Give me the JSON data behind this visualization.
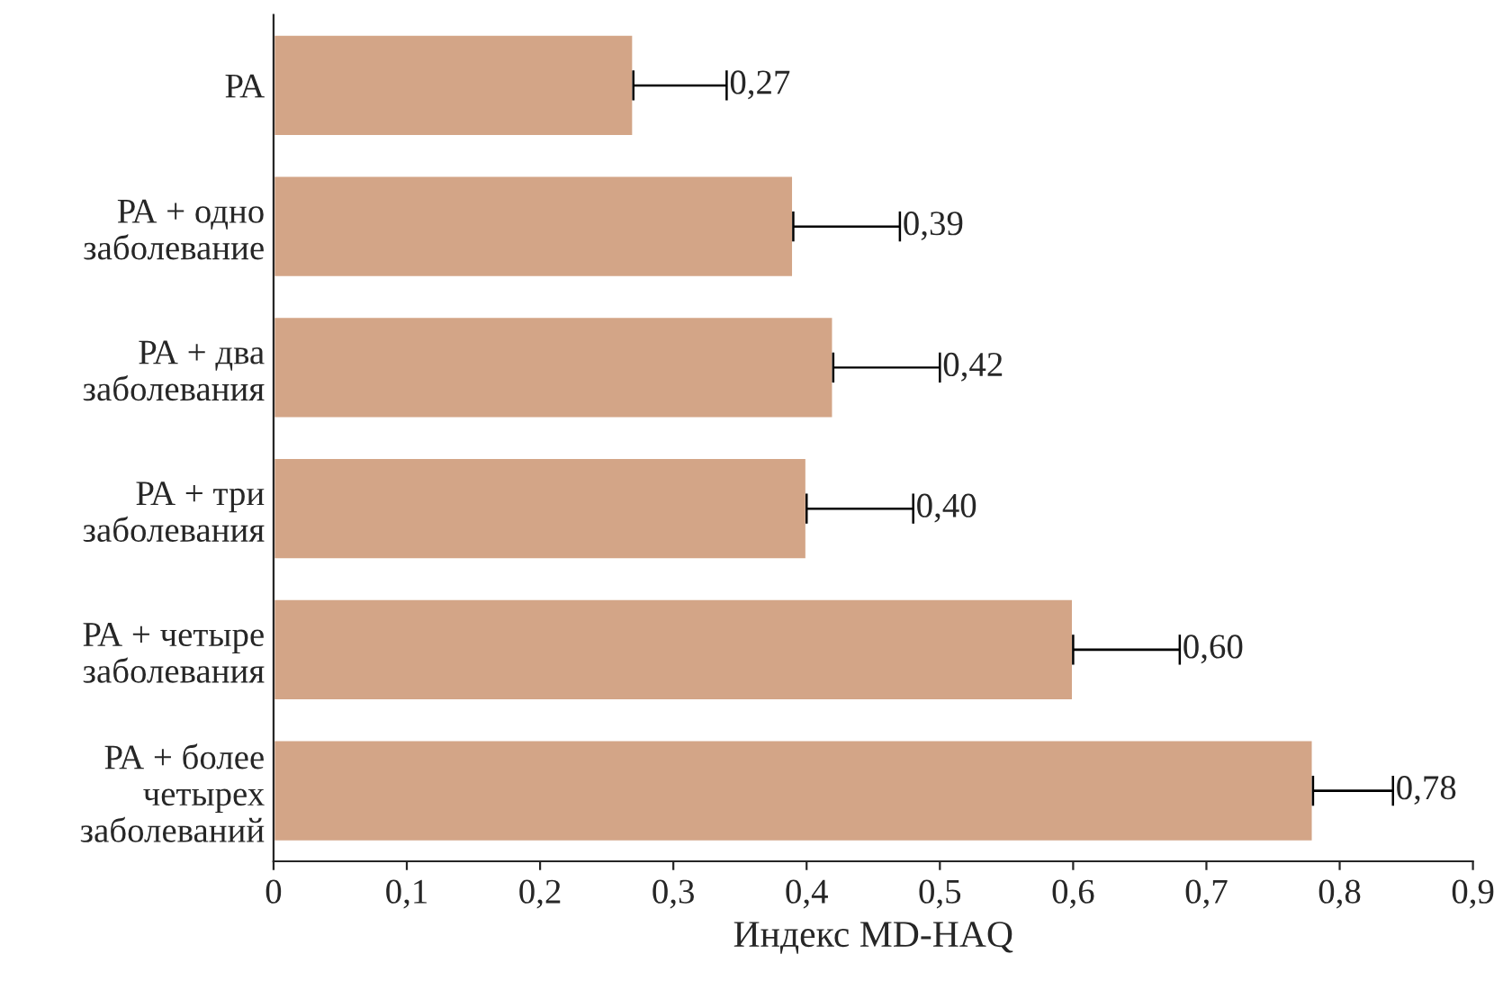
{
  "chart_data": {
    "type": "bar",
    "orientation": "horizontal",
    "xlabel": "Индекс MD-HAQ",
    "categories": [
      "РА",
      "РА + одно\nзаболевание",
      "РА + два\nзаболевания",
      "РА + три\nзаболевания",
      "РА + четыре\nзаболевания",
      "РА + более\nчетырех\nзаболеваний"
    ],
    "values": [
      0.27,
      0.39,
      0.42,
      0.4,
      0.6,
      0.78
    ],
    "value_labels": [
      "0,27",
      "0,39",
      "0,42",
      "0,40",
      "0,60",
      "0,78"
    ],
    "errors": [
      [
        0.27,
        0.34
      ],
      [
        0.39,
        0.47
      ],
      [
        0.42,
        0.5
      ],
      [
        0.4,
        0.48
      ],
      [
        0.6,
        0.68
      ],
      [
        0.78,
        0.84
      ]
    ],
    "color": "#d3a587",
    "xlim": [
      0,
      0.9
    ],
    "xticks": [
      0,
      {
        "value": 0.1,
        "label": "0,1"
      },
      {
        "value": 0.2,
        "label": "0,2"
      },
      {
        "value": 0.3,
        "label": "0,3"
      },
      {
        "value": 0.4,
        "label": "0,4"
      },
      {
        "value": 0.5,
        "label": "0,5"
      },
      {
        "value": 0.6,
        "label": "0,6"
      },
      {
        "value": 0.7,
        "label": "0,7"
      },
      {
        "value": 0.8,
        "label": "0,8"
      },
      {
        "value": 0.9,
        "label": "0,9"
      }
    ],
    "grid": false,
    "legend": false
  }
}
